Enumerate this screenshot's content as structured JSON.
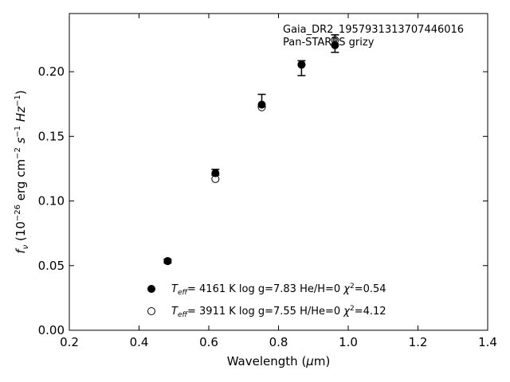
{
  "chart_data": {
    "type": "scatter",
    "title": "",
    "annotations": [
      "Gaia_DR2_1957931313707446016",
      "Pan-STARRS grizy"
    ],
    "xlabel": {
      "main": "Wavelength (",
      "sym": "μ",
      "tail": "m)"
    },
    "ylabel": {
      "f": "f",
      "nu": "ν",
      "open": " (10",
      "exp": "−26",
      "unit": " erg cm",
      "cm_exp": "−2",
      "s": " s",
      "s_exp": "−1",
      "hz": " Hz",
      "hz_exp": "−1",
      "close": ")"
    },
    "xlim": [
      0.2,
      1.4
    ],
    "ylim": [
      0.0,
      0.245
    ],
    "x_ticks": [
      0.2,
      0.4,
      0.6,
      0.8,
      1.0,
      1.2,
      1.4
    ],
    "x_tick_labels": [
      "0.2",
      "0.4",
      "0.6",
      "0.8",
      "1.0",
      "1.2",
      "1.4"
    ],
    "y_ticks": [
      0.0,
      0.05,
      0.1,
      0.15,
      0.2
    ],
    "y_tick_labels": [
      "0.00",
      "0.05",
      "0.10",
      "0.15",
      "0.20"
    ],
    "grid": false,
    "legend_placement": "bottom-center",
    "observed": {
      "x": [
        0.482,
        0.619,
        0.752,
        0.866,
        0.962
      ],
      "y": [
        0.0535,
        0.122,
        0.1745,
        0.2065,
        0.2217
      ],
      "yerr_low": [
        0.052,
        0.12,
        0.173,
        0.197,
        0.215
      ],
      "yerr_high": [
        0.055,
        0.1245,
        0.1825,
        0.2085,
        0.2285
      ]
    },
    "series": [
      {
        "name": "T_eff= 4161 K log g=7.83 He/H=0 χ2=0.54",
        "marker": "filled",
        "label": {
          "t": "T",
          "sub": "eff",
          "eq": "=  4161 K  log g=7.83  He/H=0  ",
          "chi": "χ",
          "sup": "2",
          "val": "=0.54"
        },
        "x": [
          0.482,
          0.619,
          0.752,
          0.866,
          0.962
        ],
        "y": [
          0.0535,
          0.1215,
          0.1745,
          0.2055,
          0.2205
        ]
      },
      {
        "name": "T_eff= 3911 K log g=7.55 H/He=0 χ2=4.12",
        "marker": "open",
        "label": {
          "t": "T",
          "sub": "eff",
          "eq": "=  3911 K  log g=7.55  H/He=0  ",
          "chi": "χ",
          "sup": "2",
          "val": "=4.12"
        },
        "x": [
          0.482,
          0.619,
          0.752,
          0.866,
          0.962
        ],
        "y": [
          0.0535,
          0.117,
          0.1725,
          0.2055,
          0.2245
        ]
      }
    ]
  }
}
